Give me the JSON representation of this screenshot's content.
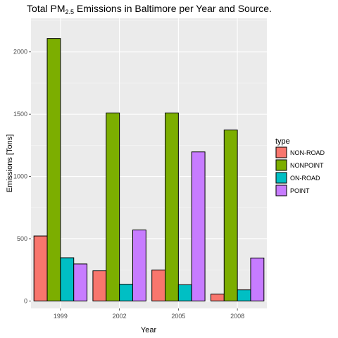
{
  "chart_data": {
    "type": "bar",
    "title": {
      "prefix": "Total  PM",
      "subscript": "2.5",
      "suffix": "  Emissions in Baltimore per Year and Source."
    },
    "xlabel": "Year",
    "ylabel": "Emissions [Tons]",
    "categories": [
      "1999",
      "2002",
      "2005",
      "2008"
    ],
    "ylim": [
      -60,
      2270
    ],
    "yticks": [
      0,
      500,
      1000,
      1500,
      2000
    ],
    "grid": true,
    "legend": {
      "title": "type",
      "placement": "right"
    },
    "series": [
      {
        "name": "NON-ROAD",
        "color": "#F8766D",
        "values": [
          522,
          242,
          249,
          55
        ]
      },
      {
        "name": "NONPOINT",
        "color": "#7CAE00",
        "values": [
          2108,
          1510,
          1510,
          1373
        ]
      },
      {
        "name": "ON-ROAD",
        "color": "#00BFC4",
        "values": [
          347,
          134,
          130,
          89
        ]
      },
      {
        "name": "POINT",
        "color": "#C77CFF",
        "values": [
          297,
          570,
          1197,
          345
        ]
      }
    ]
  }
}
